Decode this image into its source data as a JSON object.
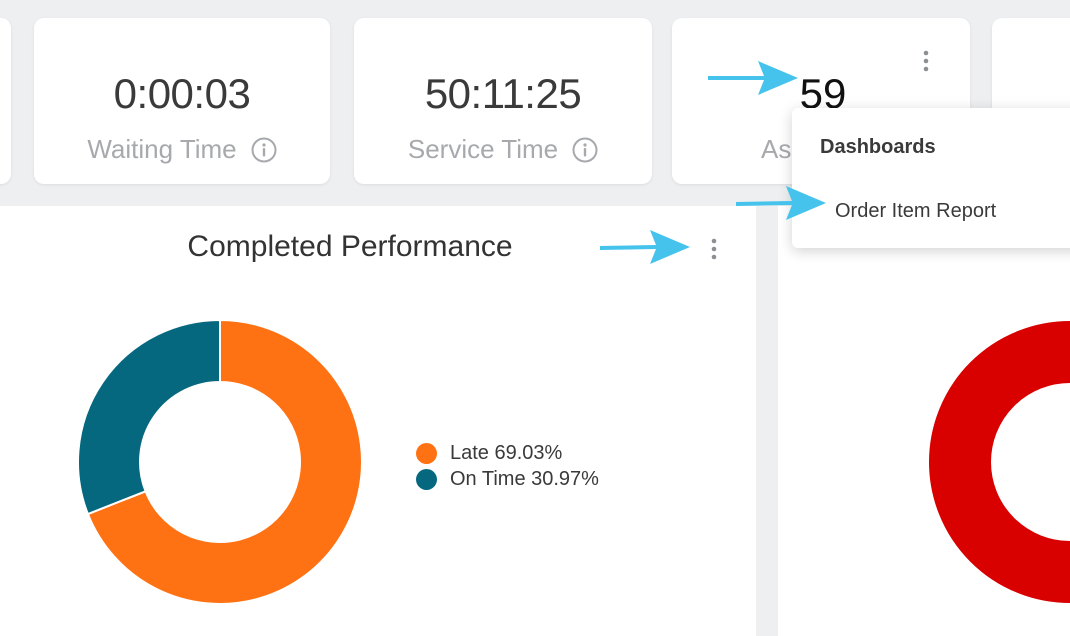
{
  "stats": [
    {
      "value": "0:00:03",
      "label": "Waiting Time"
    },
    {
      "value": "50:11:25",
      "label": "Service Time"
    },
    {
      "value": "59",
      "label": "As"
    }
  ],
  "menu": {
    "heading": "Dashboards",
    "items": [
      "Order Item Report"
    ]
  },
  "panel": {
    "title": "Completed Performance"
  },
  "colors": {
    "late": "#ff7214",
    "on_time": "#05687f",
    "red_chart": "#d90000",
    "arrow": "#45c3ec"
  },
  "chart_data": [
    {
      "type": "pie",
      "title": "Completed Performance",
      "categories": [
        "Late",
        "On Time"
      ],
      "values": [
        69.03,
        30.97
      ],
      "legend_labels": [
        "Late 69.03%",
        "On Time 30.97%"
      ],
      "colors": [
        "#ff7214",
        "#05687f"
      ],
      "legend": "right"
    }
  ]
}
